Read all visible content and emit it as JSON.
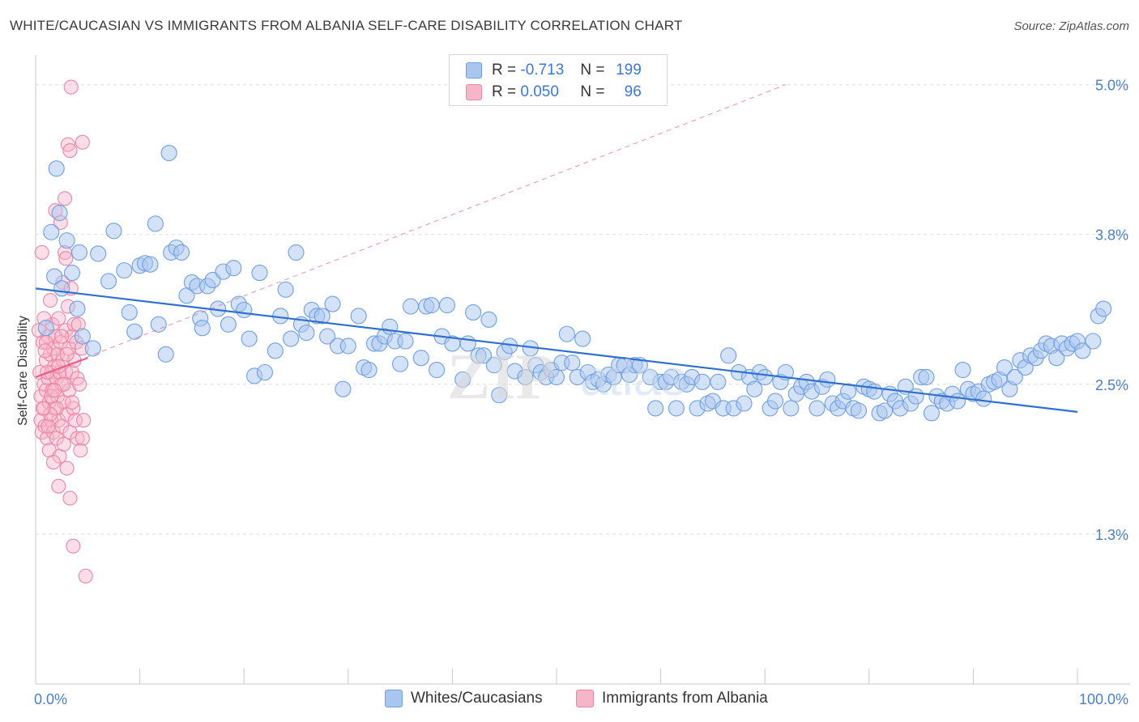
{
  "header": {
    "title": "WHITE/CAUCASIAN VS IMMIGRANTS FROM ALBANIA SELF-CARE DISABILITY CORRELATION CHART",
    "source": "Source: ZipAtlas.com"
  },
  "legend_top": {
    "rows": [
      {
        "r_label": "R =",
        "r_value": "-0.713",
        "n_label": "N =",
        "n_value": "199"
      },
      {
        "r_label": "R =",
        "r_value": "0.050",
        "n_label": "N =",
        "n_value": "96"
      }
    ]
  },
  "legend_bottom": {
    "items": [
      "Whites/Caucasians",
      "Immigrants from Albania"
    ]
  },
  "colors": {
    "blue_fill": "#a9c6f0",
    "blue_stroke": "#6f9fe0",
    "blue_line": "#2f6fd0",
    "pink_fill": "#f6b6c9",
    "pink_stroke": "#ec86a5",
    "pink_line": "#e8608c",
    "tick_text": "#4a7fc7",
    "grid": "#dcdcdc"
  },
  "chart_data": {
    "type": "scatter",
    "title": "WHITE/CAUCASIAN VS IMMIGRANTS FROM ALBANIA SELF-CARE DISABILITY CORRELATION CHART",
    "ylabel": "Self-Care Disability",
    "xlabel": "",
    "xlim": [
      0,
      100
    ],
    "ylim": [
      0,
      5.2
    ],
    "x_tick_labels": [
      {
        "value": 0,
        "label": "0.0%"
      },
      {
        "value": 100,
        "label": "100.0%"
      }
    ],
    "y_ticks": [
      {
        "value": 1.25,
        "label": "1.3%"
      },
      {
        "value": 2.5,
        "label": "2.5%"
      },
      {
        "value": 3.75,
        "label": "3.8%"
      },
      {
        "value": 5.0,
        "label": "5.0%"
      }
    ],
    "grid": true,
    "legend_position": "top-center",
    "series": [
      {
        "name": "Whites/Caucasians",
        "color": "#a9c6f0",
        "trend": {
          "x": [
            0,
            100
          ],
          "y": [
            3.3,
            2.27
          ]
        },
        "points": [
          [
            1.0,
            2.97
          ],
          [
            2.0,
            4.3
          ],
          [
            2.3,
            3.93
          ],
          [
            1.5,
            3.77
          ],
          [
            3.0,
            3.7
          ],
          [
            3.5,
            3.43
          ],
          [
            4.0,
            3.13
          ],
          [
            4.5,
            2.9
          ],
          [
            5.5,
            2.8
          ],
          [
            6.0,
            3.59
          ],
          [
            7.0,
            3.36
          ],
          [
            7.5,
            3.78
          ],
          [
            8.5,
            3.45
          ],
          [
            9.0,
            3.1
          ],
          [
            9.5,
            2.94
          ],
          [
            10.0,
            3.49
          ],
          [
            10.5,
            3.51
          ],
          [
            11.0,
            3.5
          ],
          [
            11.5,
            3.84
          ],
          [
            11.8,
            3.0
          ],
          [
            12.5,
            2.75
          ],
          [
            12.8,
            4.43
          ],
          [
            13.0,
            3.6
          ],
          [
            13.5,
            3.64
          ],
          [
            14.0,
            3.6
          ],
          [
            14.5,
            3.24
          ],
          [
            15.0,
            3.35
          ],
          [
            15.5,
            3.32
          ],
          [
            15.8,
            3.05
          ],
          [
            16.0,
            2.97
          ],
          [
            16.5,
            3.32
          ],
          [
            17.0,
            3.37
          ],
          [
            17.5,
            3.13
          ],
          [
            18.0,
            3.44
          ],
          [
            18.5,
            3.0
          ],
          [
            19.0,
            3.47
          ],
          [
            19.5,
            3.17
          ],
          [
            20.0,
            3.12
          ],
          [
            20.5,
            2.88
          ],
          [
            21.0,
            2.57
          ],
          [
            21.5,
            3.43
          ],
          [
            22.0,
            2.6
          ],
          [
            23.0,
            2.78
          ],
          [
            23.5,
            3.07
          ],
          [
            24.0,
            3.29
          ],
          [
            24.5,
            2.88
          ],
          [
            25.0,
            3.6
          ],
          [
            25.5,
            3.0
          ],
          [
            26.0,
            2.93
          ],
          [
            26.5,
            3.12
          ],
          [
            27.0,
            3.07
          ],
          [
            27.5,
            3.07
          ],
          [
            28.0,
            2.9
          ],
          [
            28.5,
            3.17
          ],
          [
            29.0,
            2.82
          ],
          [
            29.5,
            2.46
          ],
          [
            30.0,
            2.82
          ],
          [
            31.0,
            3.07
          ],
          [
            31.5,
            2.64
          ],
          [
            32.0,
            2.62
          ],
          [
            32.5,
            2.84
          ],
          [
            33.0,
            2.84
          ],
          [
            33.5,
            2.9
          ],
          [
            34.0,
            2.98
          ],
          [
            34.5,
            2.86
          ],
          [
            35.0,
            2.67
          ],
          [
            35.5,
            2.86
          ],
          [
            36.0,
            3.15
          ],
          [
            37.0,
            2.72
          ],
          [
            37.5,
            3.15
          ],
          [
            38.0,
            3.16
          ],
          [
            38.5,
            2.62
          ],
          [
            39.0,
            2.9
          ],
          [
            39.5,
            3.16
          ],
          [
            40.0,
            2.84
          ],
          [
            41.0,
            2.54
          ],
          [
            41.5,
            2.84
          ],
          [
            42.0,
            3.1
          ],
          [
            42.5,
            2.74
          ],
          [
            43.0,
            2.74
          ],
          [
            43.5,
            3.04
          ],
          [
            44.0,
            2.66
          ],
          [
            44.5,
            2.41
          ],
          [
            45.0,
            2.77
          ],
          [
            45.5,
            2.82
          ],
          [
            46.0,
            2.61
          ],
          [
            47.0,
            2.56
          ],
          [
            47.5,
            2.8
          ],
          [
            48.0,
            2.66
          ],
          [
            48.5,
            2.6
          ],
          [
            49.0,
            2.56
          ],
          [
            49.5,
            2.62
          ],
          [
            50.0,
            2.56
          ],
          [
            50.5,
            2.68
          ],
          [
            51.0,
            2.92
          ],
          [
            51.5,
            2.68
          ],
          [
            52.0,
            2.56
          ],
          [
            52.5,
            2.88
          ],
          [
            53.0,
            2.6
          ],
          [
            53.5,
            2.52
          ],
          [
            54.0,
            2.54
          ],
          [
            54.5,
            2.5
          ],
          [
            55.0,
            2.58
          ],
          [
            55.5,
            2.56
          ],
          [
            56.0,
            2.66
          ],
          [
            56.5,
            2.66
          ],
          [
            57.0,
            2.58
          ],
          [
            57.5,
            2.66
          ],
          [
            58.0,
            2.66
          ],
          [
            59.0,
            2.56
          ],
          [
            59.5,
            2.3
          ],
          [
            60.0,
            2.52
          ],
          [
            60.5,
            2.52
          ],
          [
            61.0,
            2.56
          ],
          [
            61.5,
            2.3
          ],
          [
            62.0,
            2.52
          ],
          [
            62.5,
            2.5
          ],
          [
            63.0,
            2.56
          ],
          [
            63.5,
            2.3
          ],
          [
            64.0,
            2.52
          ],
          [
            64.5,
            2.34
          ],
          [
            65.0,
            2.36
          ],
          [
            65.5,
            2.52
          ],
          [
            66.0,
            2.3
          ],
          [
            66.5,
            2.74
          ],
          [
            67.0,
            2.3
          ],
          [
            67.5,
            2.6
          ],
          [
            68.0,
            2.34
          ],
          [
            68.5,
            2.56
          ],
          [
            69.0,
            2.46
          ],
          [
            69.5,
            2.6
          ],
          [
            70.0,
            2.56
          ],
          [
            70.5,
            2.3
          ],
          [
            71.0,
            2.36
          ],
          [
            71.5,
            2.52
          ],
          [
            72.0,
            2.6
          ],
          [
            72.5,
            2.3
          ],
          [
            73.0,
            2.42
          ],
          [
            73.5,
            2.48
          ],
          [
            74.0,
            2.52
          ],
          [
            74.5,
            2.44
          ],
          [
            75.0,
            2.3
          ],
          [
            75.5,
            2.48
          ],
          [
            76.0,
            2.54
          ],
          [
            76.5,
            2.34
          ],
          [
            77.0,
            2.3
          ],
          [
            77.5,
            2.36
          ],
          [
            78.0,
            2.44
          ],
          [
            78.5,
            2.3
          ],
          [
            79.0,
            2.28
          ],
          [
            79.5,
            2.48
          ],
          [
            80.0,
            2.46
          ],
          [
            80.5,
            2.44
          ],
          [
            81.0,
            2.26
          ],
          [
            81.5,
            2.28
          ],
          [
            82.0,
            2.42
          ],
          [
            82.5,
            2.36
          ],
          [
            83.0,
            2.3
          ],
          [
            83.5,
            2.48
          ],
          [
            84.0,
            2.34
          ],
          [
            84.5,
            2.4
          ],
          [
            85.0,
            2.56
          ],
          [
            85.5,
            2.56
          ],
          [
            86.0,
            2.26
          ],
          [
            86.5,
            2.4
          ],
          [
            87.0,
            2.36
          ],
          [
            87.5,
            2.34
          ],
          [
            88.0,
            2.42
          ],
          [
            88.5,
            2.36
          ],
          [
            89.0,
            2.62
          ],
          [
            89.5,
            2.46
          ],
          [
            90.0,
            2.42
          ],
          [
            90.5,
            2.44
          ],
          [
            91.0,
            2.38
          ],
          [
            91.5,
            2.5
          ],
          [
            92.0,
            2.52
          ],
          [
            92.5,
            2.54
          ],
          [
            93.0,
            2.64
          ],
          [
            93.5,
            2.46
          ],
          [
            94.0,
            2.56
          ],
          [
            94.5,
            2.7
          ],
          [
            95.0,
            2.64
          ],
          [
            95.5,
            2.74
          ],
          [
            96.0,
            2.72
          ],
          [
            96.5,
            2.78
          ],
          [
            97.0,
            2.84
          ],
          [
            97.5,
            2.82
          ],
          [
            98.0,
            2.72
          ],
          [
            98.5,
            2.84
          ],
          [
            99.0,
            2.8
          ],
          [
            99.5,
            2.84
          ],
          [
            100.0,
            2.86
          ],
          [
            100.5,
            2.78
          ],
          [
            101.5,
            2.86
          ],
          [
            102.0,
            3.07
          ],
          [
            102.5,
            3.13
          ],
          [
            1.8,
            3.4
          ],
          [
            2.5,
            3.3
          ],
          [
            4.2,
            3.6
          ]
        ]
      },
      {
        "name": "Immigrants from Albania",
        "color": "#f6b6c9",
        "trend": {
          "x": [
            0,
            5
          ],
          "y": [
            2.56,
            2.72
          ]
        },
        "extended_trend": {
          "x": [
            0,
            72
          ],
          "y": [
            2.56,
            5.0
          ]
        },
        "points": [
          [
            0.3,
            2.95
          ],
          [
            0.4,
            2.6
          ],
          [
            0.5,
            2.4
          ],
          [
            0.5,
            2.2
          ],
          [
            0.6,
            3.6
          ],
          [
            0.6,
            2.1
          ],
          [
            0.7,
            2.85
          ],
          [
            0.8,
            2.5
          ],
          [
            0.8,
            2.3
          ],
          [
            0.9,
            2.15
          ],
          [
            1.0,
            2.7
          ],
          [
            1.0,
            2.45
          ],
          [
            1.1,
            2.05
          ],
          [
            1.2,
            2.9
          ],
          [
            1.2,
            2.55
          ],
          [
            1.3,
            2.35
          ],
          [
            1.3,
            1.95
          ],
          [
            1.4,
            3.2
          ],
          [
            1.4,
            2.75
          ],
          [
            1.5,
            2.6
          ],
          [
            1.5,
            2.2
          ],
          [
            1.6,
            3.0
          ],
          [
            1.6,
            2.45
          ],
          [
            1.7,
            2.8
          ],
          [
            1.7,
            2.1
          ],
          [
            1.8,
            2.65
          ],
          [
            1.8,
            2.3
          ],
          [
            1.9,
            3.95
          ],
          [
            1.9,
            2.9
          ],
          [
            2.0,
            2.55
          ],
          [
            2.0,
            2.05
          ],
          [
            2.1,
            2.75
          ],
          [
            2.1,
            2.4
          ],
          [
            2.2,
            3.05
          ],
          [
            2.2,
            2.2
          ],
          [
            2.3,
            2.6
          ],
          [
            2.3,
            1.9
          ],
          [
            2.4,
            3.85
          ],
          [
            2.4,
            2.85
          ],
          [
            2.5,
            2.5
          ],
          [
            2.5,
            2.15
          ],
          [
            2.6,
            3.35
          ],
          [
            2.6,
            2.7
          ],
          [
            2.7,
            2.35
          ],
          [
            2.7,
            2.0
          ],
          [
            2.8,
            4.05
          ],
          [
            2.8,
            3.6
          ],
          [
            2.9,
            2.95
          ],
          [
            2.9,
            2.6
          ],
          [
            3.0,
            2.25
          ],
          [
            3.0,
            1.8
          ],
          [
            3.1,
            4.5
          ],
          [
            3.1,
            3.15
          ],
          [
            3.2,
            2.8
          ],
          [
            3.2,
            2.45
          ],
          [
            3.3,
            2.1
          ],
          [
            3.3,
            1.55
          ],
          [
            3.4,
            4.98
          ],
          [
            3.4,
            3.3
          ],
          [
            3.5,
            2.9
          ],
          [
            3.5,
            2.6
          ],
          [
            3.6,
            2.3
          ],
          [
            3.6,
            1.15
          ],
          [
            3.7,
            3.0
          ],
          [
            3.7,
            2.7
          ],
          [
            3.8,
            2.2
          ],
          [
            3.9,
            2.85
          ],
          [
            4.0,
            2.55
          ],
          [
            4.0,
            2.05
          ],
          [
            4.1,
            3.0
          ],
          [
            4.2,
            2.5
          ],
          [
            4.3,
            1.95
          ],
          [
            4.4,
            2.8
          ],
          [
            4.5,
            2.05
          ],
          [
            3.5,
            2.35
          ],
          [
            2.0,
            2.3
          ],
          [
            1.0,
            2.85
          ],
          [
            0.8,
            3.05
          ],
          [
            1.2,
            2.15
          ],
          [
            1.5,
            2.4
          ],
          [
            2.7,
            2.5
          ],
          [
            3.0,
            2.75
          ],
          [
            2.5,
            2.9
          ],
          [
            2.2,
            2.65
          ],
          [
            1.8,
            2.45
          ],
          [
            1.4,
            2.25
          ],
          [
            1.1,
            2.6
          ],
          [
            0.9,
            2.78
          ],
          [
            0.7,
            2.3
          ],
          [
            2.9,
            3.55
          ],
          [
            3.3,
            4.45
          ],
          [
            2.2,
            1.65
          ],
          [
            4.5,
            4.52
          ],
          [
            1.7,
            1.85
          ],
          [
            4.6,
            2.2
          ],
          [
            4.8,
            0.9
          ]
        ]
      }
    ]
  }
}
